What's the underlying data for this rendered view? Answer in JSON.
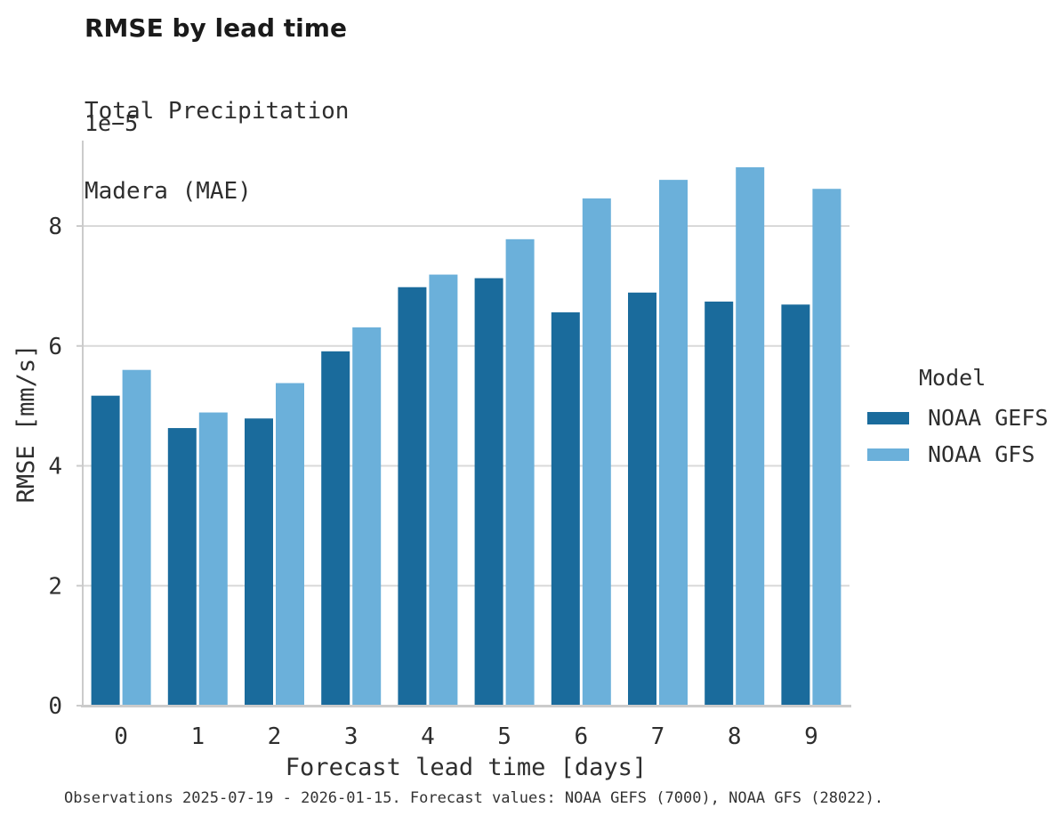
{
  "chart_data": {
    "type": "bar",
    "title": "RMSE by lead time",
    "subtitle_lines": [
      "Total Precipitation",
      "Madera (MAE)"
    ],
    "offset_label": "1e−5",
    "xlabel": "Forecast lead time [days]",
    "ylabel": "RMSE [mm/s]",
    "value_scale": "1e-5",
    "categories": [
      "0",
      "1",
      "2",
      "3",
      "4",
      "5",
      "6",
      "7",
      "8",
      "9"
    ],
    "series": [
      {
        "name": "NOAA GEFS",
        "color": "#1A6B9C",
        "values": [
          5.17,
          4.63,
          4.79,
          5.91,
          6.98,
          7.13,
          6.56,
          6.89,
          6.74,
          6.69
        ]
      },
      {
        "name": "NOAA GFS",
        "color": "#6BB0DA",
        "values": [
          5.6,
          4.89,
          5.38,
          6.31,
          7.19,
          7.78,
          8.46,
          8.77,
          8.98,
          8.62
        ]
      }
    ],
    "yticks": [
      0,
      2,
      4,
      6,
      8
    ],
    "ylim": [
      0,
      9.4
    ],
    "grid": true,
    "legend_position": "right"
  },
  "legend": {
    "title": "Model",
    "items": [
      {
        "label": "NOAA GEFS",
        "color": "#1A6B9C"
      },
      {
        "label": "NOAA GFS",
        "color": "#6BB0DA"
      }
    ]
  },
  "caption": "Observations 2025-07-19 - 2026-01-15. Forecast values: NOAA GEFS (7000), NOAA GFS (28022).",
  "style": {
    "grid_color": "#D9D9D9",
    "axis_color": "#CBCBCB",
    "text_color": "#2E2E2E",
    "title_color": "#1A1A1A",
    "background": "#FFFFFF"
  }
}
